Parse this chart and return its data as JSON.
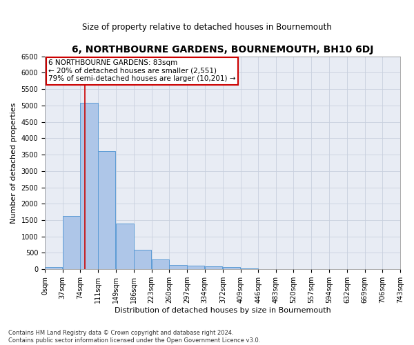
{
  "title": "6, NORTHBOURNE GARDENS, BOURNEMOUTH, BH10 6DJ",
  "subtitle": "Size of property relative to detached houses in Bournemouth",
  "xlabel": "Distribution of detached houses by size in Bournemouth",
  "ylabel": "Number of detached properties",
  "footer_line1": "Contains HM Land Registry data © Crown copyright and database right 2024.",
  "footer_line2": "Contains public sector information licensed under the Open Government Licence v3.0.",
  "bar_values": [
    70,
    1630,
    5080,
    3600,
    1400,
    590,
    290,
    130,
    100,
    80,
    60,
    30,
    0,
    0,
    0,
    0,
    0,
    0,
    0,
    0
  ],
  "bin_edges": [
    0,
    37,
    74,
    111,
    149,
    186,
    223,
    260,
    297,
    334,
    372,
    409,
    446,
    483,
    520,
    557,
    594,
    632,
    669,
    706,
    743
  ],
  "bin_labels": [
    "0sqm",
    "37sqm",
    "74sqm",
    "111sqm",
    "149sqm",
    "186sqm",
    "223sqm",
    "260sqm",
    "297sqm",
    "334sqm",
    "372sqm",
    "409sqm",
    "446sqm",
    "483sqm",
    "520sqm",
    "557sqm",
    "594sqm",
    "632sqm",
    "669sqm",
    "706sqm",
    "743sqm"
  ],
  "bar_color": "#aec6e8",
  "bar_edge_color": "#5b9bd5",
  "vline_x": 83,
  "vline_color": "#cc0000",
  "annotation_line1": "6 NORTHBOURNE GARDENS: 83sqm",
  "annotation_line2": "← 20% of detached houses are smaller (2,551)",
  "annotation_line3": "79% of semi-detached houses are larger (10,201) →",
  "annotation_box_color": "#cc0000",
  "ylim": [
    0,
    6500
  ],
  "grid_color": "#c8d0de",
  "bg_color": "#e8ecf4",
  "title_fontsize": 10,
  "subtitle_fontsize": 8.5,
  "axis_label_fontsize": 8,
  "tick_fontsize": 7,
  "annotation_fontsize": 7.5,
  "footer_fontsize": 6
}
